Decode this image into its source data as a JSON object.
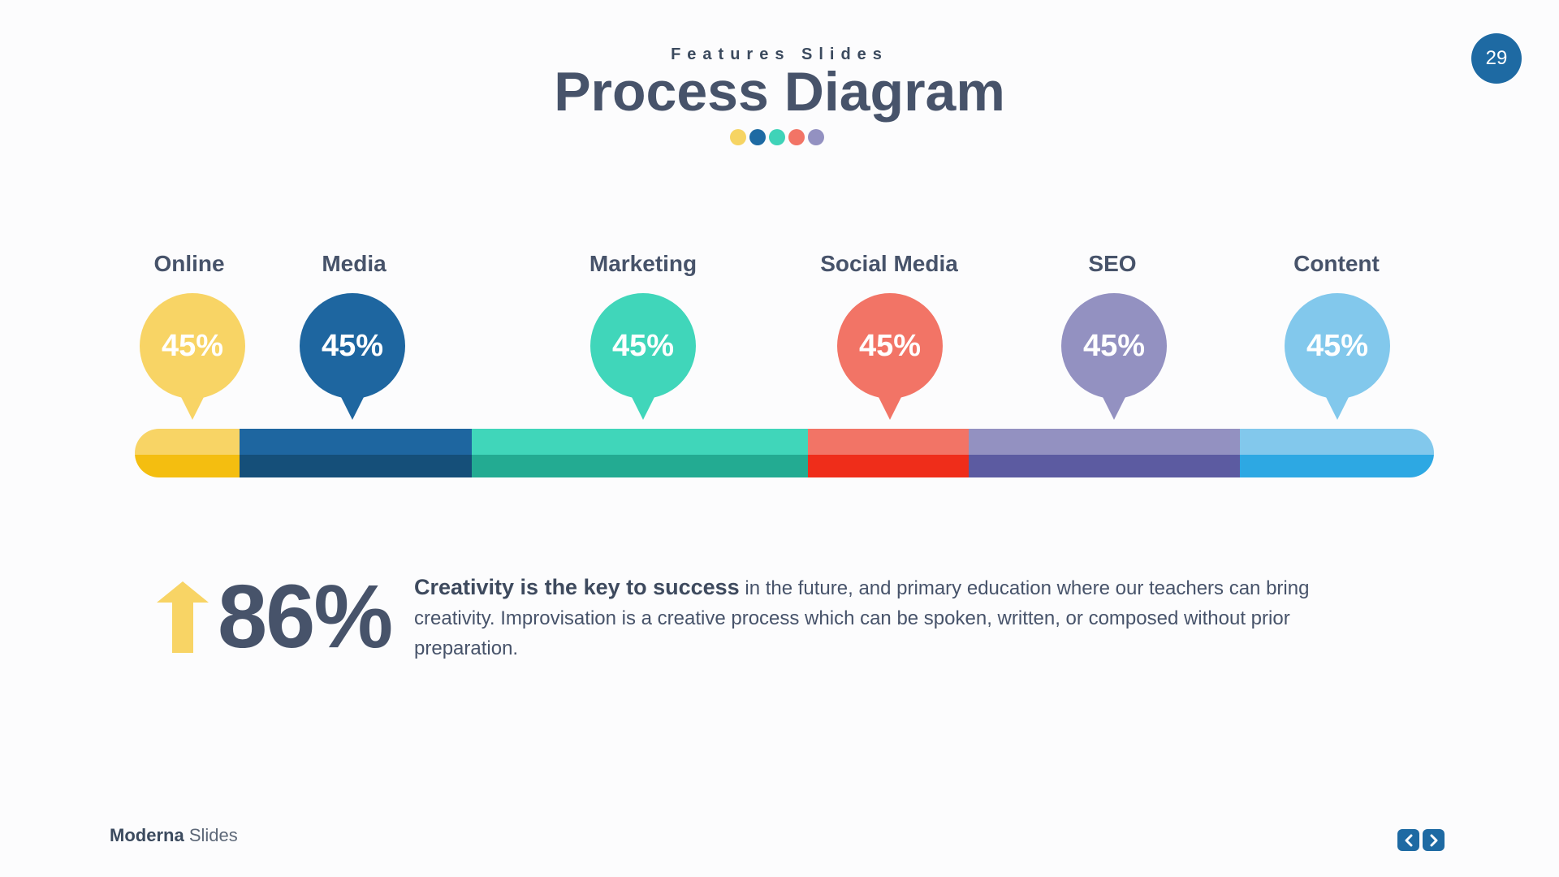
{
  "header": {
    "subtitle": "Features Slides",
    "title": "Process Diagram",
    "dot_colors": [
      "#f6d463",
      "#1e6aa3",
      "#3fd3b8",
      "#f27466",
      "#9391c1"
    ]
  },
  "page_number": "29",
  "steps": [
    {
      "label": "Online",
      "value": "45%",
      "color": "#f8d465",
      "bar_top": "#f8d465",
      "bar_bottom": "#f4be10"
    },
    {
      "label": "Media",
      "value": "45%",
      "color": "#1e66a0",
      "bar_top": "#1e66a0",
      "bar_bottom": "#154f79"
    },
    {
      "label": "Marketing",
      "value": "45%",
      "color": "#40d6ba",
      "bar_top": "#40d6ba",
      "bar_bottom": "#23ab92"
    },
    {
      "label": "Social Media",
      "value": "45%",
      "color": "#f27466",
      "bar_top": "#f27466",
      "bar_bottom": "#ef2d1a"
    },
    {
      "label": "SEO",
      "value": "45%",
      "color": "#9391c1",
      "bar_top": "#9391c1",
      "bar_bottom": "#5c5ba1"
    },
    {
      "label": "Content",
      "value": "45%",
      "color": "#82c8ec",
      "bar_top": "#82c8ec",
      "bar_bottom": "#2da8e3"
    }
  ],
  "stat": {
    "value": "86%",
    "arrow_color": "#f8d465",
    "lead": "Creativity is the key to success",
    "text": " in the future, and primary education where our teachers can bring creativity. Improvisation is a creative process which can be spoken, written, or composed without prior preparation."
  },
  "footer": {
    "brand_strong": "Moderna",
    "brand_light": "Slides",
    "nav_color": "#1e6aa3"
  }
}
